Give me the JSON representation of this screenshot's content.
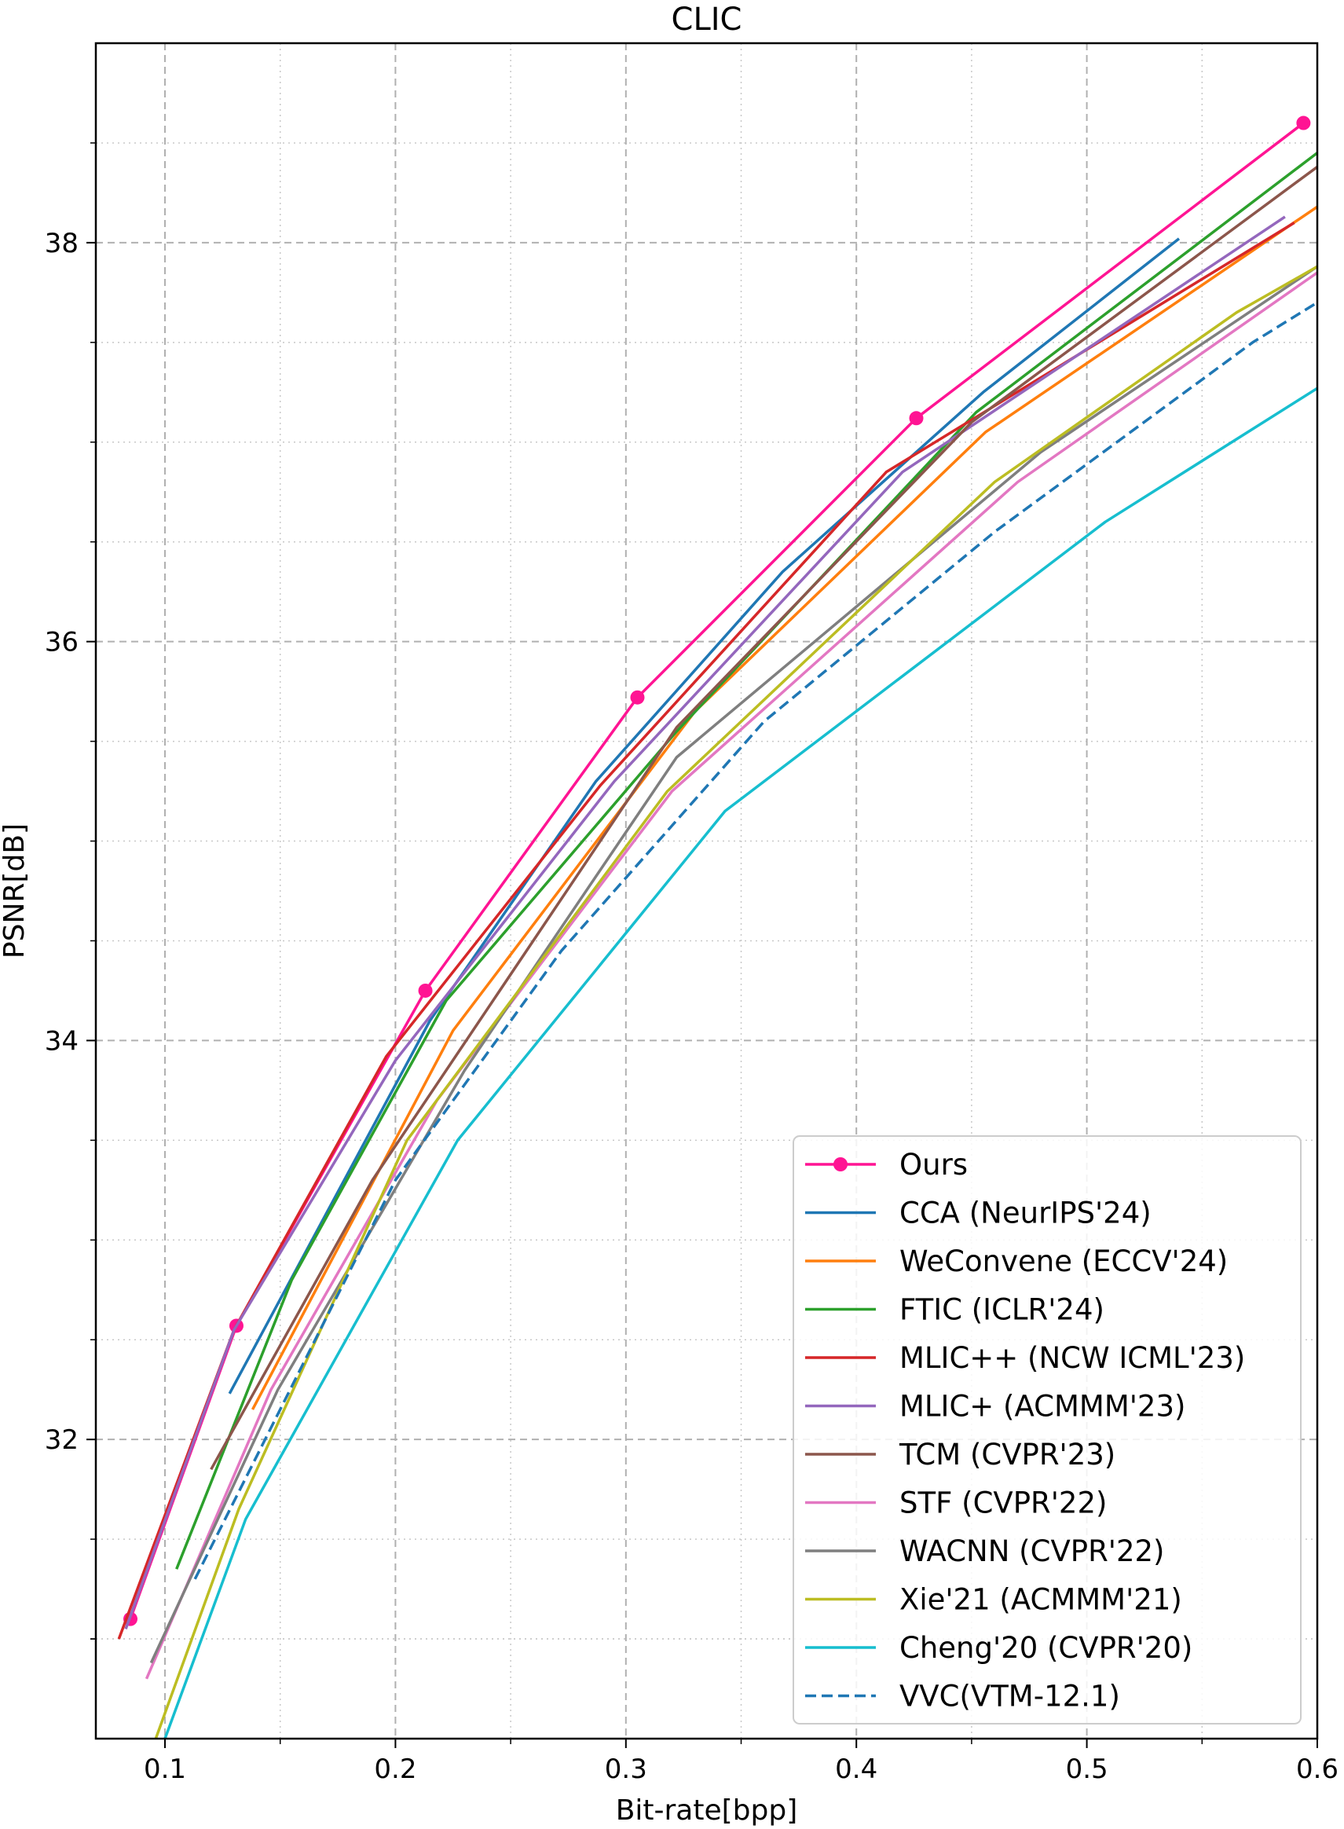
{
  "chart_data": {
    "type": "line",
    "title": "CLIC",
    "xlabel": "Bit-rate[bpp]",
    "ylabel": "PSNR[dB]",
    "xlim": [
      0.07,
      0.6
    ],
    "ylim": [
      30.5,
      39.0
    ],
    "xticks": [
      0.1,
      0.2,
      0.3,
      0.4,
      0.5,
      0.6
    ],
    "xtick_labels": [
      "0.1",
      "0.2",
      "0.3",
      "0.4",
      "0.5",
      "0.6"
    ],
    "yticks": [
      32,
      34,
      36,
      38
    ],
    "ytick_labels": [
      "32",
      "34",
      "36",
      "38"
    ],
    "x_minor_ticks": [
      0.15,
      0.25,
      0.35,
      0.45,
      0.55
    ],
    "y_minor_ticks": [
      31,
      33,
      35,
      37,
      38.5,
      37.5,
      36.5,
      35.5,
      34.5,
      33.5,
      32.5,
      31.5,
      31.0
    ],
    "grid": true,
    "legend_position": "lower-right",
    "series": [
      {
        "name": "Ours",
        "color": "#ff1493",
        "dashed": false,
        "marker": true,
        "x": [
          0.085,
          0.131,
          0.213,
          0.305,
          0.426,
          0.594
        ],
        "y": [
          31.1,
          32.57,
          34.25,
          35.72,
          37.12,
          38.6
        ]
      },
      {
        "name": "CCA (NeurIPS'24)",
        "color": "#1f77b4",
        "dashed": false,
        "marker": false,
        "x": [
          0.128,
          0.215,
          0.287,
          0.368,
          0.455,
          0.54
        ],
        "y": [
          32.23,
          34.1,
          35.3,
          36.35,
          37.25,
          38.02
        ]
      },
      {
        "name": "WeConvene (ECCV'24)",
        "color": "#ff7f0e",
        "dashed": false,
        "marker": false,
        "x": [
          0.138,
          0.225,
          0.33,
          0.456,
          0.6
        ],
        "y": [
          32.15,
          34.05,
          35.65,
          37.05,
          38.18
        ]
      },
      {
        "name": "FTIC (ICLR'24)",
        "color": "#2ca02c",
        "dashed": false,
        "marker": false,
        "x": [
          0.105,
          0.155,
          0.222,
          0.322,
          0.452,
          0.6
        ],
        "y": [
          31.35,
          32.8,
          34.2,
          35.55,
          37.15,
          38.45
        ]
      },
      {
        "name": "MLIC++ (NCW ICML'23)",
        "color": "#d62728",
        "dashed": false,
        "marker": false,
        "x": [
          0.08,
          0.13,
          0.196,
          0.289,
          0.413,
          0.59
        ],
        "y": [
          31.0,
          32.55,
          33.92,
          35.28,
          36.85,
          38.1
        ]
      },
      {
        "name": "MLIC+ (ACMMM'23)",
        "color": "#9467bd",
        "dashed": false,
        "marker": false,
        "x": [
          0.083,
          0.13,
          0.2,
          0.295,
          0.42,
          0.586
        ],
        "y": [
          31.05,
          32.55,
          33.9,
          35.3,
          36.85,
          38.13
        ]
      },
      {
        "name": "TCM (CVPR'23)",
        "color": "#8c564b",
        "dashed": false,
        "marker": false,
        "x": [
          0.12,
          0.19,
          0.322,
          0.45,
          0.6
        ],
        "y": [
          31.85,
          33.3,
          35.57,
          37.1,
          38.38
        ]
      },
      {
        "name": "STF (CVPR'22)",
        "color": "#e377c2",
        "dashed": false,
        "marker": false,
        "x": [
          0.092,
          0.146,
          0.218,
          0.32,
          0.47,
          0.6
        ],
        "y": [
          30.8,
          32.25,
          33.7,
          35.25,
          36.8,
          37.85
        ]
      },
      {
        "name": "WACNN (CVPR'22)",
        "color": "#7f7f7f",
        "dashed": false,
        "marker": false,
        "x": [
          0.094,
          0.149,
          0.23,
          0.322,
          0.48,
          0.6
        ],
        "y": [
          30.88,
          32.25,
          33.85,
          35.42,
          36.95,
          37.88
        ]
      },
      {
        "name": "Xie'21 (ACMMM'21)",
        "color": "#bcbd22",
        "dashed": false,
        "marker": false,
        "x": [
          0.096,
          0.132,
          0.205,
          0.318,
          0.46,
          0.565,
          0.6
        ],
        "y": [
          30.5,
          31.65,
          33.5,
          35.25,
          36.8,
          37.65,
          37.88
        ]
      },
      {
        "name": "Cheng'20 (CVPR'20)",
        "color": "#17becf",
        "dashed": false,
        "marker": false,
        "x": [
          0.1,
          0.135,
          0.227,
          0.343,
          0.508,
          0.6
        ],
        "y": [
          30.5,
          31.6,
          33.5,
          35.15,
          36.6,
          37.27
        ]
      },
      {
        "name": "VVC(VTM-12.1)",
        "color": "#1f77b4",
        "dashed": true,
        "marker": false,
        "x": [
          0.113,
          0.2,
          0.272,
          0.36,
          0.46,
          0.572,
          0.6
        ],
        "y": [
          31.3,
          33.3,
          34.45,
          35.6,
          36.55,
          37.5,
          37.7
        ]
      }
    ]
  }
}
